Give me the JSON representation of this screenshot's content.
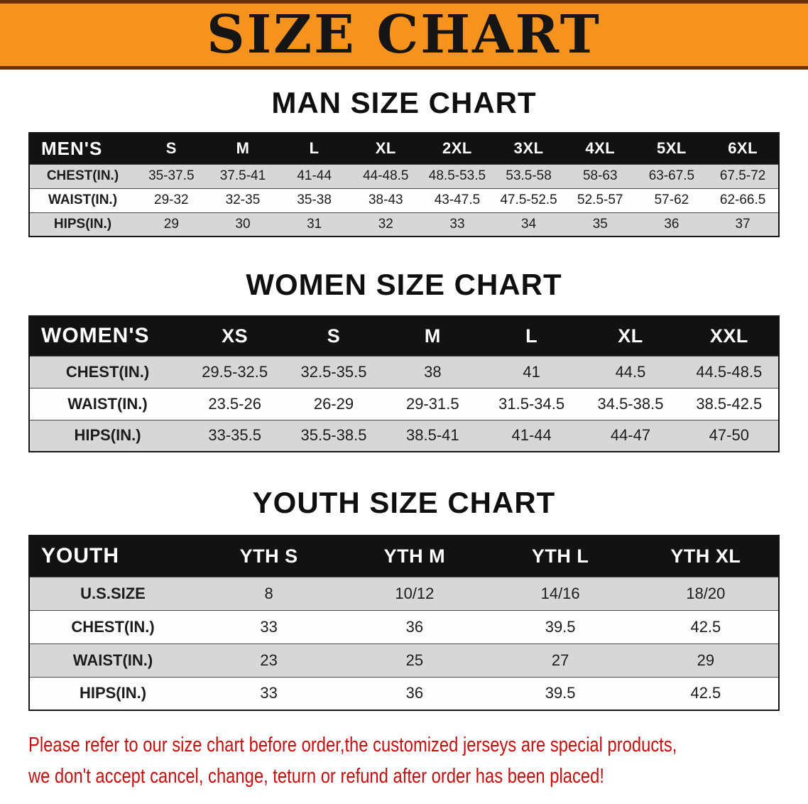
{
  "banner": {
    "title": "SIZE CHART"
  },
  "sections": {
    "men": {
      "heading": "MAN SIZE CHART",
      "table": {
        "header": [
          "MEN'S",
          "S",
          "M",
          "L",
          "XL",
          "2XL",
          "3XL",
          "4XL",
          "5XL",
          "6XL"
        ],
        "rows": [
          {
            "label": "CHEST(IN.)",
            "values": [
              "35-37.5",
              "37.5-41",
              "41-44",
              "44-48.5",
              "48.5-53.5",
              "53.5-58",
              "58-63",
              "63-67.5",
              "67.5-72"
            ]
          },
          {
            "label": "WAIST(IN.)",
            "values": [
              "29-32",
              "32-35",
              "35-38",
              "38-43",
              "43-47.5",
              "47.5-52.5",
              "52.5-57",
              "57-62",
              "62-66.5"
            ]
          },
          {
            "label": "HIPS(IN.)",
            "values": [
              "29",
              "30",
              "31",
              "32",
              "33",
              "34",
              "35",
              "36",
              "37"
            ]
          }
        ]
      }
    },
    "women": {
      "heading": "WOMEN SIZE CHART",
      "table": {
        "header": [
          "WOMEN'S",
          "XS",
          "S",
          "M",
          "L",
          "XL",
          "XXL"
        ],
        "rows": [
          {
            "label": "CHEST(IN.)",
            "values": [
              "29.5-32.5",
              "32.5-35.5",
              "38",
              "41",
              "44.5",
              "44.5-48.5"
            ]
          },
          {
            "label": "WAIST(IN.)",
            "values": [
              "23.5-26",
              "26-29",
              "29-31.5",
              "31.5-34.5",
              "34.5-38.5",
              "38.5-42.5"
            ]
          },
          {
            "label": "HIPS(IN.)",
            "values": [
              "33-35.5",
              "35.5-38.5",
              "38.5-41",
              "41-44",
              "44-47",
              "47-50"
            ]
          }
        ]
      }
    },
    "youth": {
      "heading": "YOUTH SIZE CHART",
      "table": {
        "header": [
          "YOUTH",
          "YTH S",
          "YTH M",
          "YTH L",
          "YTH XL"
        ],
        "rows": [
          {
            "label": "U.S.SIZE",
            "values": [
              "8",
              "10/12",
              "14/16",
              "18/20"
            ]
          },
          {
            "label": "CHEST(IN.)",
            "values": [
              "33",
              "36",
              "39.5",
              "42.5"
            ]
          },
          {
            "label": "WAIST(IN.)",
            "values": [
              "23",
              "25",
              "27",
              "29"
            ]
          },
          {
            "label": "HIPS(IN.)",
            "values": [
              "33",
              "36",
              "39.5",
              "42.5"
            ]
          }
        ]
      }
    }
  },
  "footer": {
    "line1": "Please refer to our size chart before order,the customized jerseys are special products,",
    "line2": "we don't accept cancel, change, teturn or refund after order has been placed!"
  },
  "colors": {
    "banner_bg": "#F6921E",
    "banner_border": "#6B3305",
    "table_header_bg": "#121212",
    "row_stripe": "#D7D7D7",
    "disclaimer_red": "#C40F0F"
  }
}
